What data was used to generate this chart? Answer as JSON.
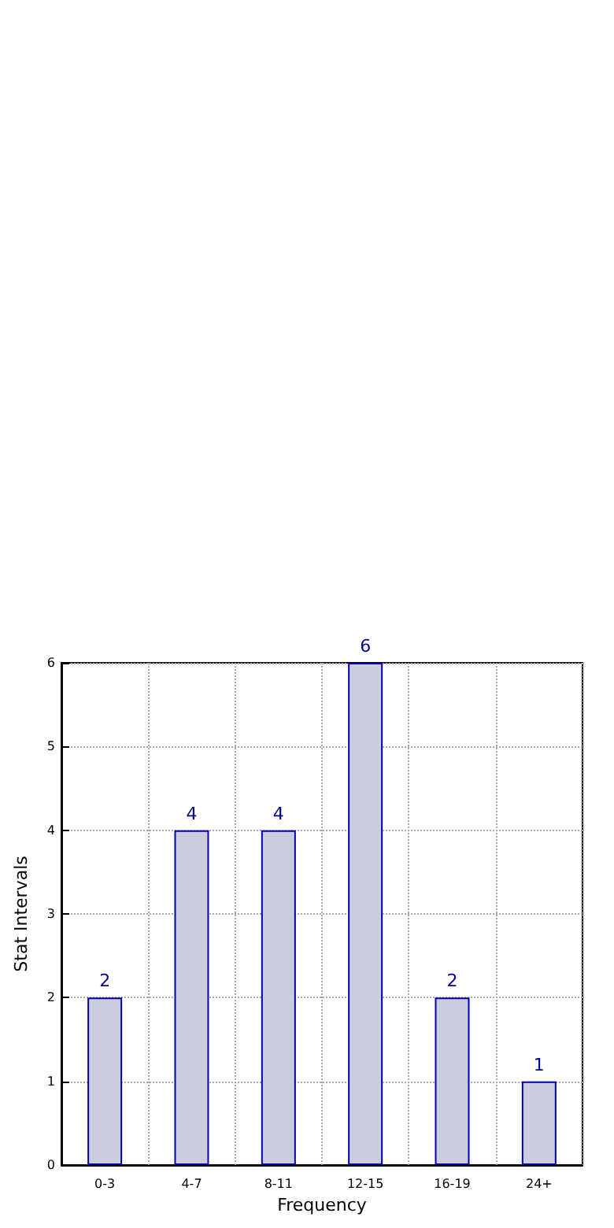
{
  "chart_data": {
    "type": "bar",
    "xlabel": "Frequency",
    "ylabel": "Stat Intervals",
    "categories": [
      "0-3",
      "4-7",
      "8-11",
      "12-15",
      "16-19",
      "24+"
    ],
    "values": [
      2,
      4,
      4,
      6,
      2,
      1
    ],
    "color": "#ccccdf",
    "data_labels": true,
    "ylim": [
      0,
      6
    ],
    "yticks": [
      0,
      1,
      2,
      3,
      4,
      5,
      6
    ],
    "grid": true
  }
}
